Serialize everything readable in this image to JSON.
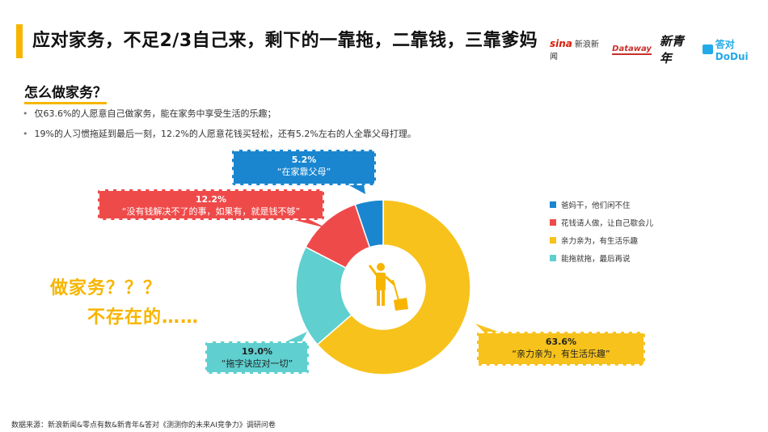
{
  "header": {
    "title": "应对家务，不足2/3自己来，剩下的一靠拖，二靠钱，三靠爹妈",
    "logos": {
      "sina": "sina",
      "sina_sub": "新浪新闻",
      "dataway": "Dataway",
      "xqn": "新青年",
      "dodui": "答对 DoDui"
    }
  },
  "section_title": "怎么做家务？",
  "bullets": [
    "仅63.6%的人愿意自己做家务，能在家务中享受生活的乐趣；",
    "19%的人习惯拖延到最后一刻，12.2%的人愿意花钱买轻松，还有5.2%左右的人全靠父母打理。"
  ],
  "side_text": {
    "line1": "做家务？？？",
    "line2": "不存在的……"
  },
  "callouts": {
    "blue": {
      "pct": "5.2%",
      "text": "“在家靠父母”"
    },
    "red": {
      "pct": "12.2%",
      "text": "“没有钱解决不了的事，如果有，就是钱不够”"
    },
    "yellow": {
      "pct": "63.6%",
      "text": "“亲力亲为，有生活乐趣”"
    },
    "cyan": {
      "pct": "19.0%",
      "text": "“拖字诀应对一切”"
    }
  },
  "chart_data": {
    "type": "pie",
    "donut": true,
    "series": [
      {
        "name": "爸妈干，他们闲不住",
        "value": 5.2,
        "color": "#1a86d0"
      },
      {
        "name": "花钱请人做，让自己歇会儿",
        "value": 12.2,
        "color": "#ef4a4a"
      },
      {
        "name": "亲力亲为，有生活乐趣",
        "value": 63.6,
        "color": "#f7c21b"
      },
      {
        "name": "能拖就拖，最后再说",
        "value": 19.0,
        "color": "#5fcfcf"
      }
    ],
    "legend_position": "right",
    "center_icon": "person-cleaning-icon"
  },
  "source": "数据来源：新浪新闻&零点有数&新青年&答对《测测你的未来AI竞争力》调研问卷"
}
